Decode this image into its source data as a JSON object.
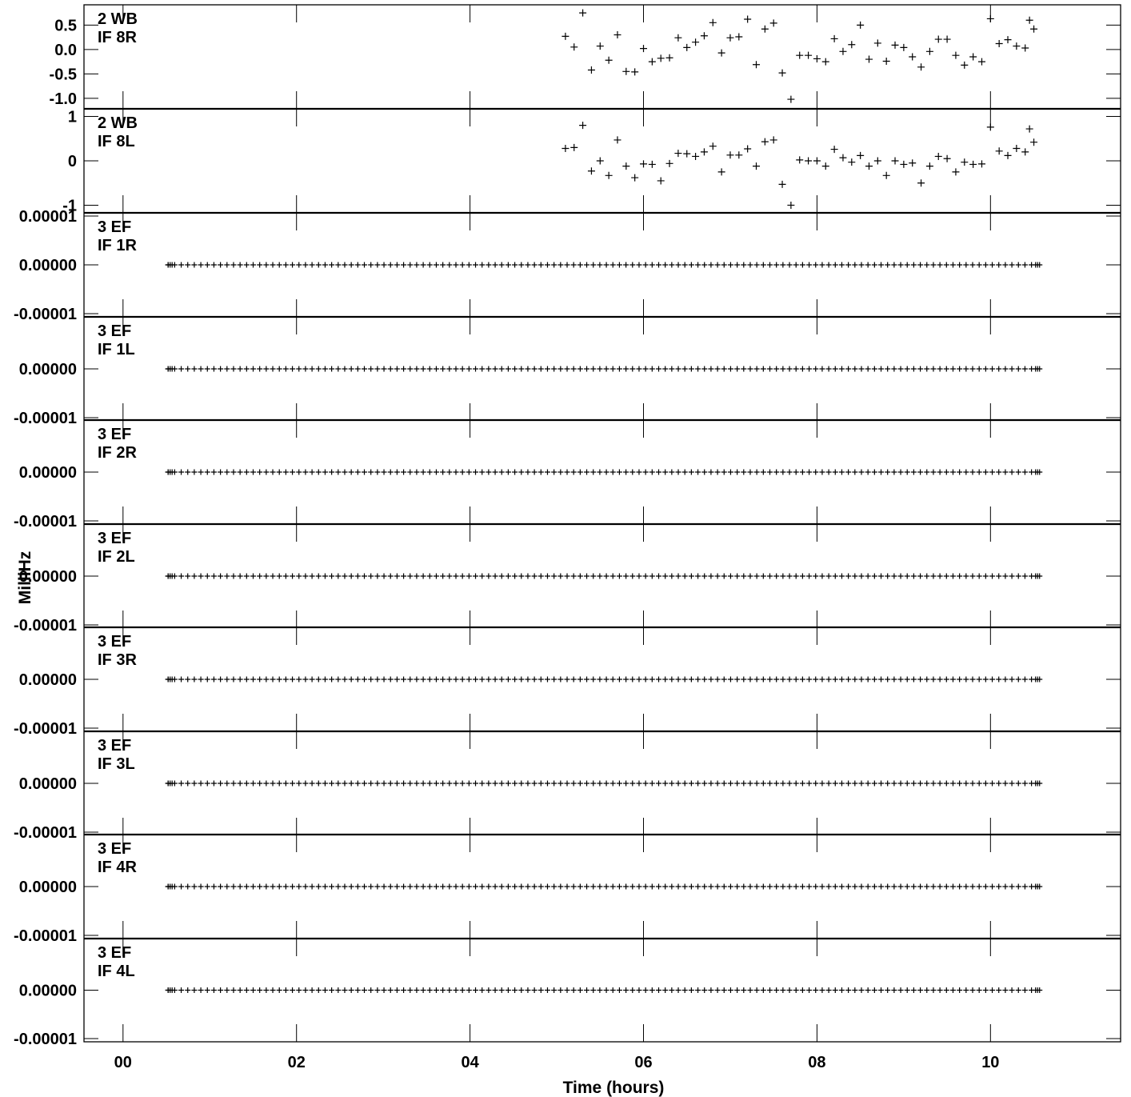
{
  "chart_data": {
    "type": "scatter",
    "title": "",
    "xlabel": "Time (hours)",
    "ylabel": "MilliHz",
    "xlim": [
      -0.45,
      11.5
    ],
    "x_tick_labels": [
      "00",
      "02",
      "04",
      "06",
      "08",
      "10"
    ],
    "x_tick_values": [
      0,
      2,
      4,
      6,
      8,
      10
    ],
    "grid": false,
    "marker": "plus",
    "panels": [
      {
        "label_line1": "2 WB",
        "label_line2": "IF 8R",
        "ylim": [
          -1.15,
          0.85
        ],
        "y_ticks": [
          {
            "v": 0.5,
            "t": "0.5"
          },
          {
            "v": 0.0,
            "t": "0.0"
          },
          {
            "v": -0.5,
            "t": "-0.5"
          },
          {
            "v": -1.0,
            "t": "-1.0"
          }
        ],
        "points": [
          [
            5.1,
            0.27
          ],
          [
            5.2,
            0.05
          ],
          [
            5.3,
            0.75
          ],
          [
            5.4,
            -0.42
          ],
          [
            5.5,
            0.07
          ],
          [
            5.6,
            -0.22
          ],
          [
            5.7,
            0.3
          ],
          [
            5.8,
            -0.45
          ],
          [
            5.9,
            -0.46
          ],
          [
            6.0,
            0.02
          ],
          [
            6.1,
            -0.25
          ],
          [
            6.2,
            -0.18
          ],
          [
            6.3,
            -0.17
          ],
          [
            6.4,
            0.24
          ],
          [
            6.5,
            0.04
          ],
          [
            6.6,
            0.15
          ],
          [
            6.7,
            0.28
          ],
          [
            6.8,
            0.55
          ],
          [
            6.9,
            -0.07
          ],
          [
            7.0,
            0.24
          ],
          [
            7.1,
            0.26
          ],
          [
            7.2,
            0.62
          ],
          [
            7.3,
            -0.31
          ],
          [
            7.4,
            0.42
          ],
          [
            7.5,
            0.54
          ],
          [
            7.6,
            -0.48
          ],
          [
            7.7,
            -1.02
          ],
          [
            7.8,
            -0.12
          ],
          [
            7.9,
            -0.12
          ],
          [
            8.0,
            -0.19
          ],
          [
            8.1,
            -0.25
          ],
          [
            8.2,
            0.22
          ],
          [
            8.3,
            -0.04
          ],
          [
            8.4,
            0.1
          ],
          [
            8.5,
            0.5
          ],
          [
            8.6,
            -0.2
          ],
          [
            8.7,
            0.13
          ],
          [
            8.8,
            -0.24
          ],
          [
            8.9,
            0.09
          ],
          [
            9.0,
            0.04
          ],
          [
            9.1,
            -0.15
          ],
          [
            9.2,
            -0.36
          ],
          [
            9.3,
            -0.04
          ],
          [
            9.4,
            0.21
          ],
          [
            9.5,
            0.21
          ],
          [
            9.6,
            -0.12
          ],
          [
            9.7,
            -0.32
          ],
          [
            9.8,
            -0.15
          ],
          [
            9.9,
            -0.25
          ],
          [
            10.0,
            0.63
          ],
          [
            10.1,
            0.12
          ],
          [
            10.2,
            0.2
          ],
          [
            10.3,
            0.07
          ],
          [
            10.4,
            0.03
          ],
          [
            10.45,
            0.6
          ],
          [
            10.5,
            0.42
          ]
        ]
      },
      {
        "label_line1": "2 WB",
        "label_line2": "IF 8L",
        "ylim": [
          -1.1,
          1.1
        ],
        "y_ticks": [
          {
            "v": 1,
            "t": "1"
          },
          {
            "v": 0,
            "t": "0"
          },
          {
            "v": -1,
            "t": "-1"
          }
        ],
        "points": [
          [
            5.1,
            0.28
          ],
          [
            5.2,
            0.3
          ],
          [
            5.3,
            0.8
          ],
          [
            5.4,
            -0.23
          ],
          [
            5.5,
            0.0
          ],
          [
            5.6,
            -0.33
          ],
          [
            5.7,
            0.47
          ],
          [
            5.8,
            -0.12
          ],
          [
            5.9,
            -0.38
          ],
          [
            6.0,
            -0.07
          ],
          [
            6.1,
            -0.08
          ],
          [
            6.2,
            -0.45
          ],
          [
            6.3,
            -0.06
          ],
          [
            6.4,
            0.17
          ],
          [
            6.5,
            0.16
          ],
          [
            6.6,
            0.1
          ],
          [
            6.7,
            0.2
          ],
          [
            6.8,
            0.33
          ],
          [
            6.9,
            -0.25
          ],
          [
            7.0,
            0.13
          ],
          [
            7.1,
            0.13
          ],
          [
            7.2,
            0.27
          ],
          [
            7.3,
            -0.12
          ],
          [
            7.4,
            0.43
          ],
          [
            7.5,
            0.47
          ],
          [
            7.6,
            -0.53
          ],
          [
            7.7,
            -1.0
          ],
          [
            7.8,
            0.02
          ],
          [
            7.9,
            0.0
          ],
          [
            8.0,
            0.0
          ],
          [
            8.1,
            -0.12
          ],
          [
            8.2,
            0.26
          ],
          [
            8.3,
            0.07
          ],
          [
            8.4,
            -0.03
          ],
          [
            8.5,
            0.12
          ],
          [
            8.6,
            -0.12
          ],
          [
            8.7,
            0.0
          ],
          [
            8.8,
            -0.33
          ],
          [
            8.9,
            0.0
          ],
          [
            9.0,
            -0.08
          ],
          [
            9.1,
            -0.05
          ],
          [
            9.2,
            -0.5
          ],
          [
            9.3,
            -0.12
          ],
          [
            9.4,
            0.1
          ],
          [
            9.5,
            0.05
          ],
          [
            9.6,
            -0.25
          ],
          [
            9.7,
            -0.03
          ],
          [
            9.8,
            -0.08
          ],
          [
            9.9,
            -0.07
          ],
          [
            10.0,
            0.76
          ],
          [
            10.1,
            0.22
          ],
          [
            10.2,
            0.12
          ],
          [
            10.3,
            0.28
          ],
          [
            10.4,
            0.2
          ],
          [
            10.45,
            0.72
          ],
          [
            10.5,
            0.42
          ]
        ]
      },
      {
        "label_line1": "3 EF",
        "label_line2": "IF 1R",
        "ylim": [
          -1e-05,
          1e-05
        ],
        "y_ticks": [
          {
            "v": 1e-05,
            "t": "0.00001"
          },
          {
            "v": 0,
            "t": "0.00000"
          },
          {
            "v": -1e-05,
            "t": "-0.00001"
          }
        ],
        "series_x_start": 0.52,
        "series_x_end": 10.52,
        "series_x_step": 0.0754,
        "series_y": 0.0
      },
      {
        "label_line1": "3 EF",
        "label_line2": "IF 1L",
        "ylim": [
          -1e-05,
          1e-05
        ],
        "y_ticks": [
          {
            "v": 0,
            "t": "0.00000"
          },
          {
            "v": -1e-05,
            "t": "-0.00001"
          }
        ],
        "series_x_start": 0.52,
        "series_x_end": 10.52,
        "series_x_step": 0.0754,
        "series_y": 0.0
      },
      {
        "label_line1": "3 EF",
        "label_line2": "IF 2R",
        "ylim": [
          -1e-05,
          1e-05
        ],
        "y_ticks": [
          {
            "v": 0,
            "t": "0.00000"
          },
          {
            "v": -1e-05,
            "t": "-0.00001"
          }
        ],
        "series_x_start": 0.52,
        "series_x_end": 10.52,
        "series_x_step": 0.0754,
        "series_y": 0.0
      },
      {
        "label_line1": "3 EF",
        "label_line2": "IF 2L",
        "ylim": [
          -1e-05,
          1e-05
        ],
        "y_ticks": [
          {
            "v": 0,
            "t": "0.00000"
          },
          {
            "v": -1e-05,
            "t": "-0.00001"
          }
        ],
        "series_x_start": 0.52,
        "series_x_end": 10.52,
        "series_x_step": 0.0754,
        "series_y": 0.0
      },
      {
        "label_line1": "3 EF",
        "label_line2": "IF 3R",
        "ylim": [
          -1e-05,
          1e-05
        ],
        "y_ticks": [
          {
            "v": 0,
            "t": "0.00000"
          },
          {
            "v": -1e-05,
            "t": "-0.00001"
          }
        ],
        "series_x_start": 0.52,
        "series_x_end": 10.52,
        "series_x_step": 0.0754,
        "series_y": 0.0
      },
      {
        "label_line1": "3 EF",
        "label_line2": "IF 3L",
        "ylim": [
          -1e-05,
          1e-05
        ],
        "y_ticks": [
          {
            "v": 0,
            "t": "0.00000"
          },
          {
            "v": -1e-05,
            "t": "-0.00001"
          }
        ],
        "series_x_start": 0.52,
        "series_x_end": 10.52,
        "series_x_step": 0.0754,
        "series_y": 0.0
      },
      {
        "label_line1": "3 EF",
        "label_line2": "IF 4R",
        "ylim": [
          -1e-05,
          1e-05
        ],
        "y_ticks": [
          {
            "v": 0,
            "t": "0.00000"
          },
          {
            "v": -1e-05,
            "t": "-0.00001"
          }
        ],
        "series_x_start": 0.52,
        "series_x_end": 10.52,
        "series_x_step": 0.0754,
        "series_y": 0.0
      },
      {
        "label_line1": "3 EF",
        "label_line2": "IF 4L",
        "ylim": [
          -1e-05,
          1e-05
        ],
        "y_ticks": [
          {
            "v": 0,
            "t": "0.00000"
          },
          {
            "v": -1e-05,
            "t": "-0.00001"
          }
        ],
        "series_x_start": 0.52,
        "series_x_end": 10.52,
        "series_x_step": 0.0754,
        "series_y": 0.0
      }
    ]
  }
}
